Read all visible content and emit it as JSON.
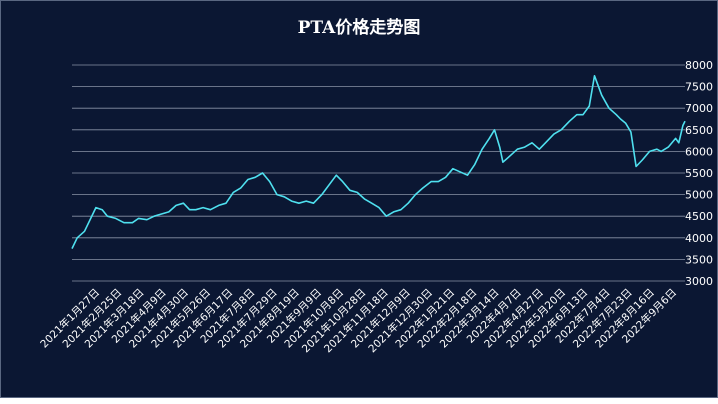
{
  "chart_data": {
    "type": "line",
    "title": "PTA价格走势图",
    "xlabel": "",
    "ylabel": "",
    "ylim": [
      3000,
      8000
    ],
    "yticks": [
      3000,
      3500,
      4000,
      4500,
      5000,
      5500,
      6000,
      6500,
      7000,
      7500,
      8000
    ],
    "grid": true,
    "legend": "none",
    "colors": {
      "background": "#0b1733",
      "line": "#4fe0ef",
      "grid": "#8a93a6",
      "text": "#ffffff"
    },
    "x_tick_labels": [
      "2021年1月27日",
      "2021年2月25日",
      "2021年3月18日",
      "2021年4月9日",
      "2021年4月30日",
      "2021年5月26日",
      "2021年6月17日",
      "2021年7月8日",
      "2021年7月29日",
      "2021年8月19日",
      "2021年9月9日",
      "2021年10月8日",
      "2021年10月28日",
      "2021年11月18日",
      "2021年12月9日",
      "2021年12月30日",
      "2022年1月21日",
      "2022年2月18日",
      "2022年3月14日",
      "2022年4月7日",
      "2022年4月27日",
      "2022年5月20日",
      "2022年6月13日",
      "2022年7月4日",
      "2022年7月23日",
      "2022年8月16日",
      "2022年9月6日"
    ],
    "series": [
      {
        "x": [
          "2021-01-27",
          "2021-02-01",
          "2021-02-08",
          "2021-02-19",
          "2021-02-25",
          "2021-03-02",
          "2021-03-10",
          "2021-03-18",
          "2021-03-26",
          "2021-04-01",
          "2021-04-09",
          "2021-04-16",
          "2021-04-23",
          "2021-04-30",
          "2021-05-07",
          "2021-05-14",
          "2021-05-20",
          "2021-05-26",
          "2021-06-02",
          "2021-06-09",
          "2021-06-17",
          "2021-06-24",
          "2021-07-01",
          "2021-07-08",
          "2021-07-15",
          "2021-07-22",
          "2021-07-29",
          "2021-08-05",
          "2021-08-12",
          "2021-08-19",
          "2021-08-26",
          "2021-09-02",
          "2021-09-09",
          "2021-09-16",
          "2021-09-24",
          "2021-10-08",
          "2021-10-14",
          "2021-10-21",
          "2021-10-28",
          "2021-11-04",
          "2021-11-11",
          "2021-11-18",
          "2021-11-25",
          "2021-12-02",
          "2021-12-09",
          "2021-12-16",
          "2021-12-23",
          "2021-12-30",
          "2022-01-07",
          "2022-01-14",
          "2022-01-21",
          "2022-01-28",
          "2022-02-11",
          "2022-02-18",
          "2022-02-25",
          "2022-03-04",
          "2022-03-09",
          "2022-03-14",
          "2022-03-17",
          "2022-03-24",
          "2022-03-31",
          "2022-04-07",
          "2022-04-14",
          "2022-04-21",
          "2022-04-27",
          "2022-05-05",
          "2022-05-12",
          "2022-05-20",
          "2022-05-27",
          "2022-06-02",
          "2022-06-08",
          "2022-06-13",
          "2022-06-20",
          "2022-06-27",
          "2022-07-04",
          "2022-07-08",
          "2022-07-13",
          "2022-07-18",
          "2022-07-23",
          "2022-07-29",
          "2022-08-05",
          "2022-08-12",
          "2022-08-16",
          "2022-08-23",
          "2022-08-30",
          "2022-09-02",
          "2022-09-06",
          "2022-09-08"
        ],
        "values": [
          3750,
          4000,
          4150,
          4700,
          4650,
          4500,
          4450,
          4350,
          4350,
          4450,
          4420,
          4500,
          4550,
          4600,
          4750,
          4800,
          4650,
          4650,
          4700,
          4650,
          4750,
          4800,
          5050,
          5150,
          5350,
          5400,
          5500,
          5300,
          5000,
          4950,
          4850,
          4800,
          4850,
          4800,
          5000,
          5450,
          5300,
          5100,
          5050,
          4900,
          4800,
          4700,
          4500,
          4600,
          4650,
          4800,
          5000,
          5150,
          5300,
          5300,
          5400,
          5600,
          5450,
          5700,
          6050,
          6300,
          6500,
          6100,
          5750,
          5900,
          6050,
          6100,
          6200,
          6050,
          6200,
          6400,
          6500,
          6700,
          6850,
          6850,
          7050,
          7750,
          7300,
          7000,
          6850,
          6750,
          6650,
          6450,
          5650,
          5800,
          6000,
          6050,
          6000,
          6100,
          6300,
          6200,
          6600,
          6700
        ]
      }
    ]
  }
}
